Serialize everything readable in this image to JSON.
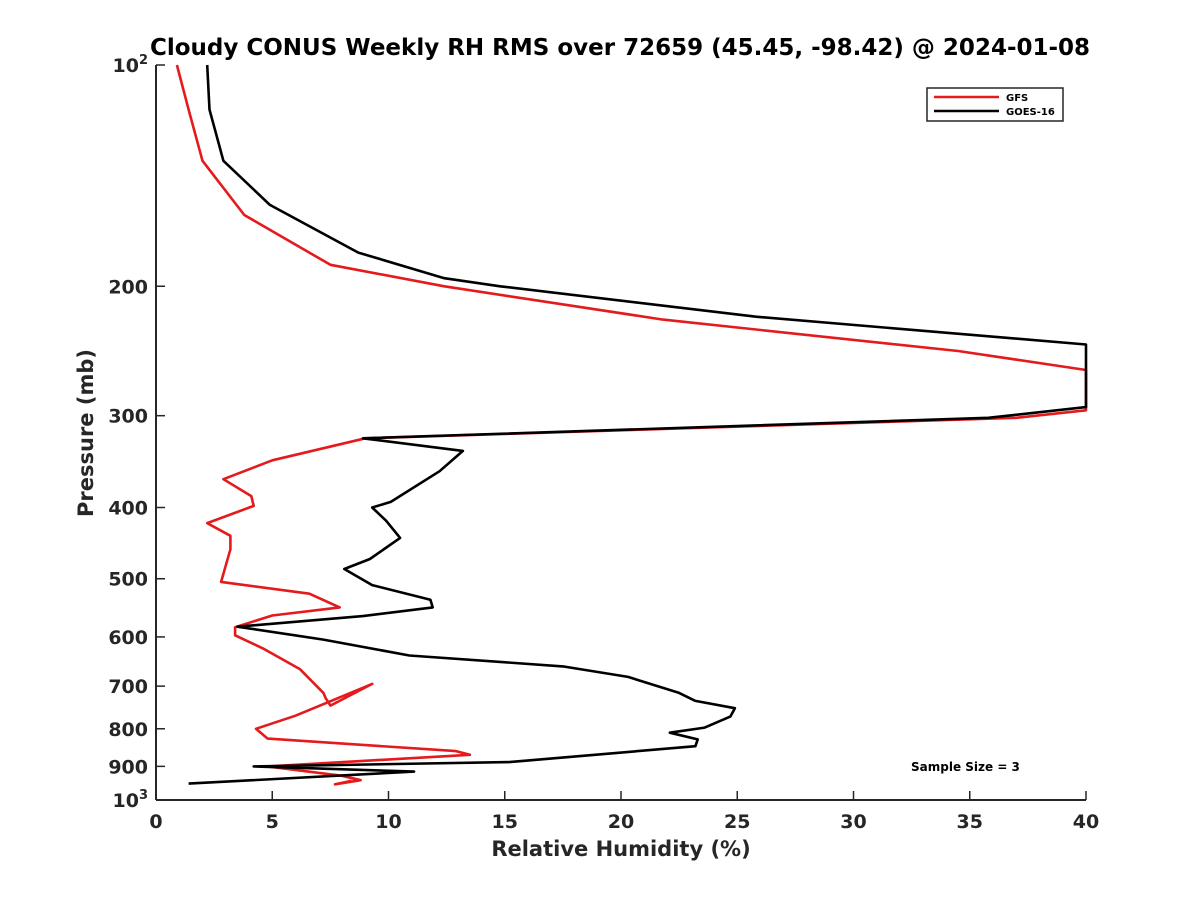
{
  "chart_data": {
    "type": "line",
    "title": "Cloudy CONUS Weekly RH RMS over 72659 (45.45, -98.42) @ 2024-01-08",
    "xlabel": "Relative Humidity (%)",
    "ylabel": "Pressure (mb)",
    "xlim": [
      0,
      40
    ],
    "ylim": [
      100,
      1000
    ],
    "y_scale": "log",
    "y_reversed": true,
    "grid": false,
    "legend_position": "top-right",
    "annotation": "Sample Size = 3",
    "x_ticks": [
      "0",
      "5",
      "10",
      "15",
      "20",
      "25",
      "30",
      "35",
      "40"
    ],
    "y_ticks": [
      {
        "value": 100,
        "base": "10",
        "exp": "2"
      },
      {
        "value": 200,
        "label": "200"
      },
      {
        "value": 300,
        "label": "300"
      },
      {
        "value": 400,
        "label": "400"
      },
      {
        "value": 500,
        "label": "500"
      },
      {
        "value": 600,
        "label": "600"
      },
      {
        "value": 700,
        "label": "700"
      },
      {
        "value": 800,
        "label": "800"
      },
      {
        "value": 900,
        "label": "900"
      },
      {
        "value": 1000,
        "base": "10",
        "exp": "3"
      }
    ],
    "series": [
      {
        "name": "GFS",
        "color": "#e41a1c",
        "points": [
          [
            0.9,
            100
          ],
          [
            1.4,
            115
          ],
          [
            2.0,
            135
          ],
          [
            3.8,
            160
          ],
          [
            7.5,
            187
          ],
          [
            12.4,
            200
          ],
          [
            21.8,
            222
          ],
          [
            34.5,
            245
          ],
          [
            40.0,
            260
          ],
          [
            40.0,
            295
          ],
          [
            37.0,
            302
          ],
          [
            9.0,
            322
          ],
          [
            5.0,
            345
          ],
          [
            2.9,
            366
          ],
          [
            4.1,
            386
          ],
          [
            4.2,
            398
          ],
          [
            2.2,
            420
          ],
          [
            3.2,
            437
          ],
          [
            3.2,
            456
          ],
          [
            2.8,
            505
          ],
          [
            6.6,
            524
          ],
          [
            7.9,
            547
          ],
          [
            5.0,
            561
          ],
          [
            3.4,
            582
          ],
          [
            3.4,
            597
          ],
          [
            4.6,
            622
          ],
          [
            6.2,
            664
          ],
          [
            7.2,
            715
          ],
          [
            7.3,
            727
          ],
          [
            7.5,
            744
          ],
          [
            9.3,
            695
          ],
          [
            6.0,
            768
          ],
          [
            4.3,
            800
          ],
          [
            4.8,
            825
          ],
          [
            12.9,
            858
          ],
          [
            13.5,
            868
          ],
          [
            4.8,
            900
          ],
          [
            8.0,
            927
          ],
          [
            8.8,
            940
          ],
          [
            7.7,
            952
          ],
          [
            8.4,
            942
          ]
        ]
      },
      {
        "name": "GOES-16",
        "color": "#000000",
        "points": [
          [
            2.2,
            100
          ],
          [
            2.3,
            115
          ],
          [
            2.9,
            135
          ],
          [
            4.9,
            155
          ],
          [
            8.7,
            180
          ],
          [
            12.4,
            195
          ],
          [
            14.8,
            200
          ],
          [
            25.8,
            220
          ],
          [
            40.0,
            240
          ],
          [
            40.0,
            292
          ],
          [
            35.8,
            302
          ],
          [
            8.9,
            322
          ],
          [
            13.2,
            335
          ],
          [
            12.2,
            357
          ],
          [
            10.1,
            393
          ],
          [
            9.3,
            400
          ],
          [
            9.9,
            417
          ],
          [
            10.5,
            440
          ],
          [
            9.2,
            470
          ],
          [
            8.1,
            485
          ],
          [
            9.3,
            510
          ],
          [
            11.8,
            534
          ],
          [
            11.9,
            547
          ],
          [
            8.9,
            562
          ],
          [
            3.5,
            581
          ],
          [
            7.2,
            605
          ],
          [
            10.9,
            636
          ],
          [
            17.5,
            658
          ],
          [
            20.3,
            680
          ],
          [
            22.5,
            715
          ],
          [
            23.2,
            733
          ],
          [
            24.9,
            750
          ],
          [
            24.7,
            770
          ],
          [
            23.6,
            797
          ],
          [
            22.1,
            810
          ],
          [
            23.3,
            827
          ],
          [
            23.2,
            845
          ],
          [
            15.2,
            888
          ],
          [
            4.2,
            900
          ],
          [
            11.1,
            915
          ],
          [
            1.4,
            950
          ]
        ]
      }
    ]
  }
}
